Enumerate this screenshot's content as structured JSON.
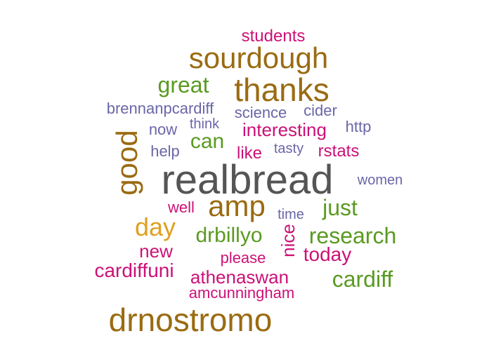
{
  "colors": {
    "background": "#ffffff",
    "gray": "#555555",
    "brown": "#9a6b12",
    "green": "#5a9a22",
    "magenta": "#cc1177",
    "purple": "#6a66a8",
    "gold": "#e0a020"
  },
  "words": [
    {
      "text": "realbread",
      "color": "#555555"
    },
    {
      "text": "drnostromo",
      "color": "#9a6b12"
    },
    {
      "text": "thanks",
      "color": "#9a6b12"
    },
    {
      "text": "sourdough",
      "color": "#9a6b12"
    },
    {
      "text": "good",
      "color": "#9a6b12"
    },
    {
      "text": "amp",
      "color": "#9a6b12"
    },
    {
      "text": "day",
      "color": "#e0a020"
    },
    {
      "text": "research",
      "color": "#5a9a22"
    },
    {
      "text": "cardiff",
      "color": "#5a9a22"
    },
    {
      "text": "great",
      "color": "#5a9a22"
    },
    {
      "text": "drbillyo",
      "color": "#5a9a22"
    },
    {
      "text": "just",
      "color": "#5a9a22"
    },
    {
      "text": "can",
      "color": "#5a9a22"
    },
    {
      "text": "cardiffuni",
      "color": "#cc1177"
    },
    {
      "text": "athenaswan",
      "color": "#cc1177"
    },
    {
      "text": "today",
      "color": "#cc1177"
    },
    {
      "text": "interesting",
      "color": "#cc1177"
    },
    {
      "text": "new",
      "color": "#cc1177"
    },
    {
      "text": "please",
      "color": "#cc1177"
    },
    {
      "text": "nice",
      "color": "#cc1177"
    },
    {
      "text": "rstats",
      "color": "#cc1177"
    },
    {
      "text": "like",
      "color": "#cc1177"
    },
    {
      "text": "well",
      "color": "#cc1177"
    },
    {
      "text": "amcunningham",
      "color": "#cc1177"
    },
    {
      "text": "students",
      "color": "#cc1177"
    },
    {
      "text": "brennanpcardiff",
      "color": "#6a66a8"
    },
    {
      "text": "science",
      "color": "#6a66a8"
    },
    {
      "text": "cider",
      "color": "#6a66a8"
    },
    {
      "text": "http",
      "color": "#6a66a8"
    },
    {
      "text": "now",
      "color": "#6a66a8"
    },
    {
      "text": "think",
      "color": "#6a66a8"
    },
    {
      "text": "help",
      "color": "#6a66a8"
    },
    {
      "text": "tasty",
      "color": "#6a66a8"
    },
    {
      "text": "women",
      "color": "#6a66a8"
    },
    {
      "text": "time",
      "color": "#6a66a8"
    }
  ]
}
